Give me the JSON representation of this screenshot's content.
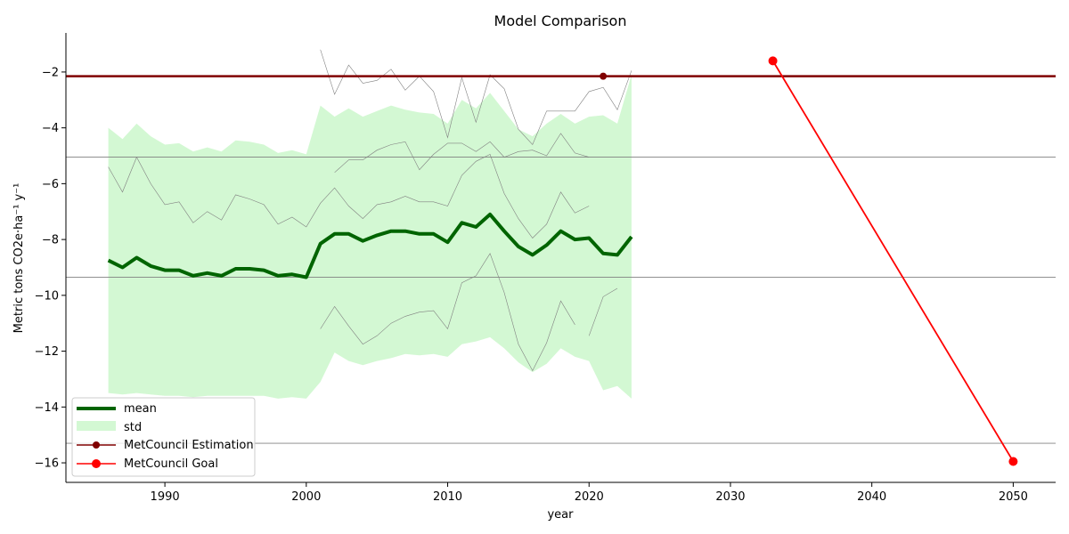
{
  "chart_data": {
    "type": "line",
    "title": "Model Comparison",
    "xlabel": "year",
    "ylabel": "Metric tons CO2e·ha⁻¹ y⁻¹",
    "xlim": [
      1983,
      2053
    ],
    "ylim": [
      -16.7,
      -0.6
    ],
    "xticks": [
      1990,
      2000,
      2010,
      2020,
      2030,
      2040,
      2050
    ],
    "yticks": [
      -16,
      -14,
      -12,
      -10,
      -8,
      -6,
      -4,
      -2
    ],
    "grid": false,
    "hlines_gray": [
      -5.05,
      -9.35,
      -15.3
    ],
    "legend_position": "lower-left",
    "legend": [
      "mean",
      "std",
      "MetCouncil Estimation",
      "MetCouncil Goal"
    ],
    "colors": {
      "mean": "#006400",
      "std_fill": "#90ee90",
      "estimation": "#800000",
      "goal": "#ff0000",
      "model_lines": "#808080",
      "hlines": "#808080"
    },
    "series": [
      {
        "name": "mean",
        "x": [
          1986,
          1987,
          1988,
          1989,
          1990,
          1991,
          1992,
          1993,
          1994,
          1995,
          1996,
          1997,
          1998,
          1999,
          2000,
          2001,
          2002,
          2003,
          2004,
          2005,
          2006,
          2007,
          2008,
          2009,
          2010,
          2011,
          2012,
          2013,
          2014,
          2015,
          2016,
          2017,
          2018,
          2019,
          2020,
          2021,
          2022,
          2023
        ],
        "y": [
          -8.75,
          -9.0,
          -8.65,
          -8.95,
          -9.1,
          -9.1,
          -9.3,
          -9.2,
          -9.3,
          -9.05,
          -9.05,
          -9.1,
          -9.3,
          -9.25,
          -9.35,
          -8.15,
          -7.8,
          -7.8,
          -8.05,
          -7.85,
          -7.7,
          -7.7,
          -7.8,
          -7.8,
          -8.1,
          -7.4,
          -7.55,
          -7.1,
          -7.7,
          -8.25,
          -8.55,
          -8.2,
          -7.7,
          -8.0,
          -7.95,
          -8.5,
          -8.55,
          -7.9
        ]
      },
      {
        "name": "std",
        "x": [
          1986,
          1987,
          1988,
          1989,
          1990,
          1991,
          1992,
          1993,
          1994,
          1995,
          1996,
          1997,
          1998,
          1999,
          2000,
          2001,
          2002,
          2003,
          2004,
          2005,
          2006,
          2007,
          2008,
          2009,
          2010,
          2011,
          2012,
          2013,
          2014,
          2015,
          2016,
          2017,
          2018,
          2019,
          2020,
          2021,
          2022,
          2023
        ],
        "upper": [
          -4.0,
          -4.4,
          -3.85,
          -4.3,
          -4.6,
          -4.55,
          -4.85,
          -4.7,
          -4.85,
          -4.45,
          -4.5,
          -4.6,
          -4.9,
          -4.8,
          -4.95,
          -3.2,
          -3.6,
          -3.3,
          -3.6,
          -3.4,
          -3.2,
          -3.35,
          -3.45,
          -3.5,
          -3.85,
          -3.0,
          -3.3,
          -2.75,
          -3.4,
          -4.05,
          -4.3,
          -3.85,
          -3.5,
          -3.85,
          -3.6,
          -3.55,
          -3.85,
          -2.1
        ],
        "lower": [
          -13.5,
          -13.55,
          -13.5,
          -13.55,
          -13.6,
          -13.6,
          -13.65,
          -13.6,
          -13.6,
          -13.6,
          -13.6,
          -13.6,
          -13.7,
          -13.65,
          -13.7,
          -13.1,
          -12.05,
          -12.35,
          -12.5,
          -12.35,
          -12.25,
          -12.1,
          -12.15,
          -12.1,
          -12.2,
          -11.75,
          -11.65,
          -11.5,
          -11.9,
          -12.4,
          -12.75,
          -12.45,
          -11.9,
          -12.2,
          -12.35,
          -13.4,
          -13.25,
          -13.7
        ]
      },
      {
        "name": "MetCouncil Estimation",
        "x": [
          2021
        ],
        "y": [
          -2.15
        ],
        "line_y": -2.15
      },
      {
        "name": "MetCouncil Goal",
        "x": [
          2033,
          2050
        ],
        "y": [
          -1.6,
          -15.95
        ]
      }
    ],
    "model_lines": [
      {
        "x": [
          1986,
          1987,
          1988,
          1989,
          1990,
          1991,
          1992,
          1993,
          1994,
          1995,
          1996,
          1997,
          1998,
          1999,
          2000,
          2001,
          2002,
          2003,
          2004,
          2005,
          2006,
          2007,
          2008,
          2009,
          2010,
          2011,
          2012,
          2013,
          2014,
          2015,
          2016,
          2017,
          2018,
          2019,
          2020
        ],
        "y": [
          -5.4,
          -6.3,
          -5.05,
          -6.0,
          -6.75,
          -6.65,
          -7.4,
          -7.0,
          -7.3,
          -6.4,
          -6.55,
          -6.75,
          -7.45,
          -7.2,
          -7.55,
          -6.7,
          -6.15,
          -6.8,
          -7.25,
          -6.75,
          -6.65,
          -6.45,
          -6.65,
          -6.65,
          -6.8,
          -5.7,
          -5.2,
          -4.95,
          -6.35,
          -7.25,
          -7.95,
          -7.45,
          -6.3,
          -7.05,
          -6.8
        ]
      },
      {
        "x": [
          2001,
          2002,
          2003,
          2004,
          2005,
          2006,
          2007,
          2008,
          2009,
          2010,
          2011,
          2012,
          2013,
          2014,
          2015,
          2016,
          2017,
          2018,
          2019,
          2020,
          2021,
          2022,
          2023
        ],
        "y": [
          -1.2,
          -2.8,
          -1.75,
          -2.4,
          -2.3,
          -1.9,
          -2.65,
          -2.15,
          -2.7,
          -4.35,
          -2.2,
          -3.8,
          -2.1,
          -2.6,
          -4.05,
          -4.6,
          -3.4,
          -3.4,
          -3.4,
          -2.7,
          -2.55,
          -3.35,
          -1.95
        ]
      },
      {
        "x": [
          2002,
          2003,
          2004,
          2005,
          2006,
          2007,
          2008,
          2009,
          2010,
          2011,
          2012,
          2013,
          2014,
          2015,
          2016,
          2017,
          2018,
          2019,
          2020
        ],
        "y": [
          -5.6,
          -5.15,
          -5.15,
          -4.8,
          -4.6,
          -4.5,
          -5.5,
          -4.95,
          -4.55,
          -4.55,
          -4.85,
          -4.5,
          -5.05,
          -4.85,
          -4.8,
          -5.0,
          -4.2,
          -4.9,
          -5.05
        ]
      },
      {
        "x": [
          2001,
          2002,
          2003,
          2004,
          2005,
          2006,
          2007,
          2008,
          2009,
          2010,
          2011,
          2012,
          2013,
          2014,
          2015,
          2016,
          2017,
          2018,
          2019
        ],
        "y": [
          -11.2,
          -10.4,
          -11.1,
          -11.75,
          -11.45,
          -11.0,
          -10.75,
          -10.6,
          -10.55,
          -11.2,
          -9.55,
          -9.3,
          -8.5,
          -9.9,
          -11.75,
          -12.7,
          -11.7,
          -10.2,
          -11.05
        ]
      },
      {
        "x": [
          2020,
          2021,
          2022
        ],
        "y": [
          -11.45,
          -10.05,
          -9.75
        ]
      }
    ]
  }
}
